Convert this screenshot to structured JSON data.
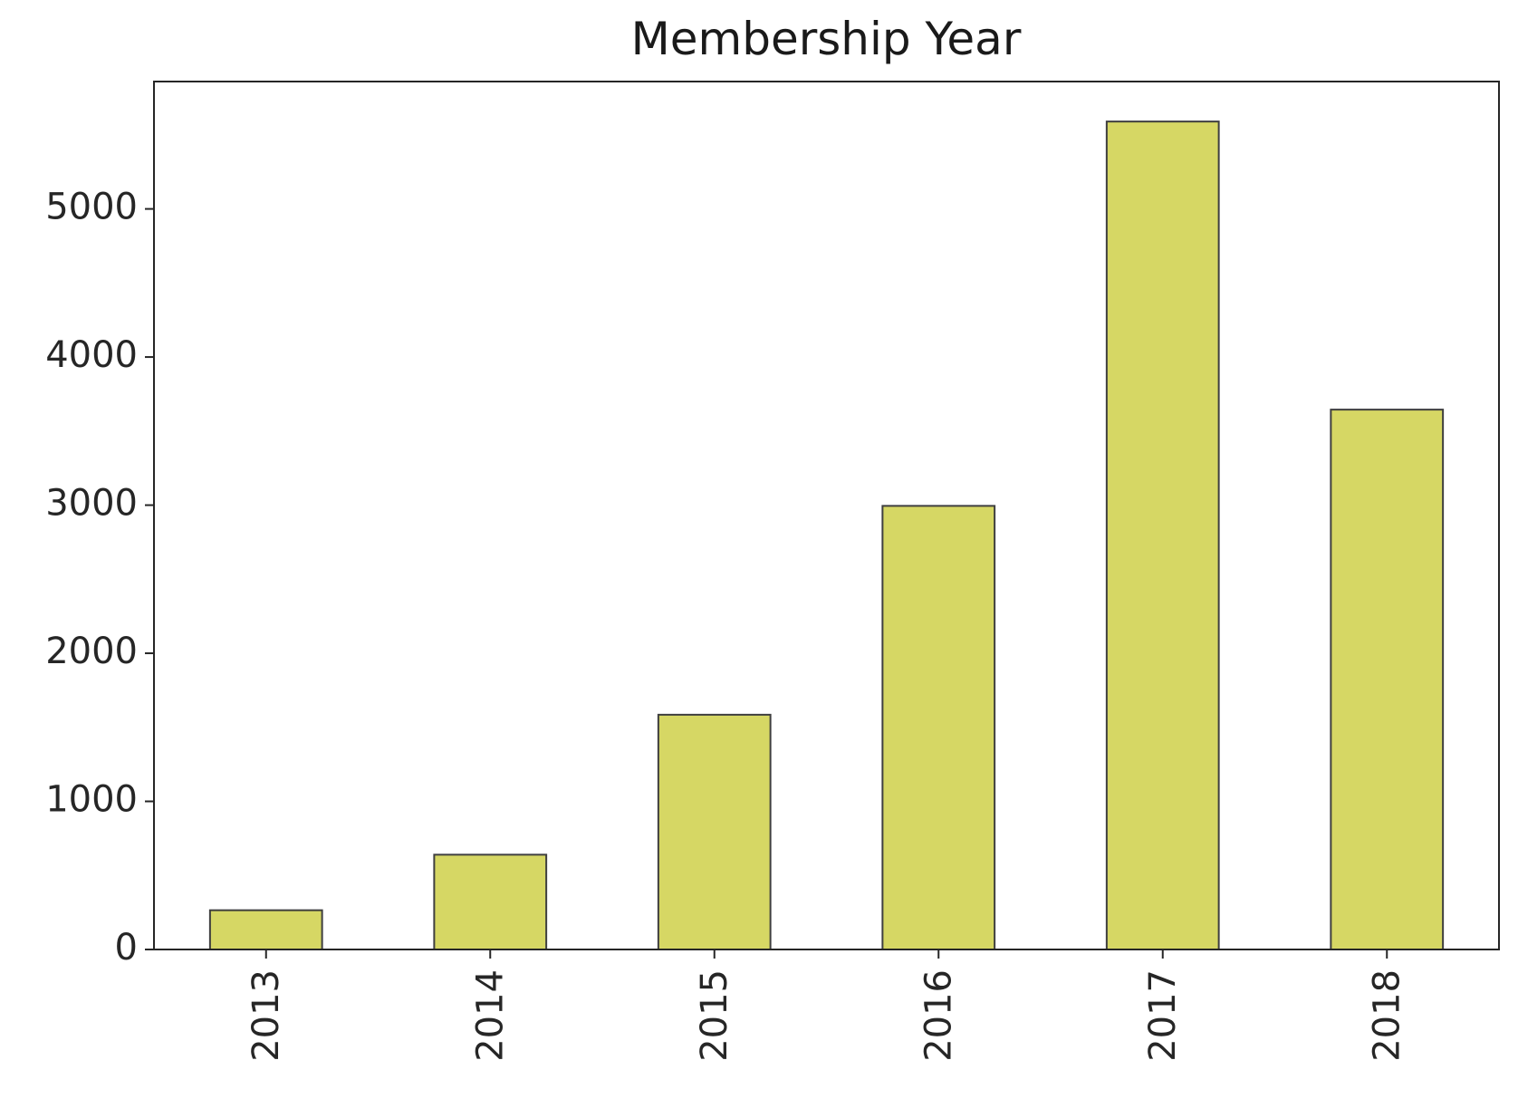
{
  "chart_data": {
    "type": "bar",
    "title": "Membership Year",
    "xlabel": "",
    "ylabel": "",
    "categories": [
      "2013",
      "2014",
      "2015",
      "2016",
      "2017",
      "2018"
    ],
    "values": [
      265,
      640,
      1585,
      2995,
      5590,
      3645
    ],
    "ylim": [
      0,
      5860
    ],
    "yticks": [
      0,
      1000,
      2000,
      3000,
      4000,
      5000
    ],
    "grid": false,
    "legend": "none",
    "x_tick_rotation": "vertical",
    "colors": {
      "bar_fill": "#d6d764",
      "bar_edge": "#3f3f3f",
      "axis": "#262626",
      "text": "#1a1a1a"
    }
  }
}
